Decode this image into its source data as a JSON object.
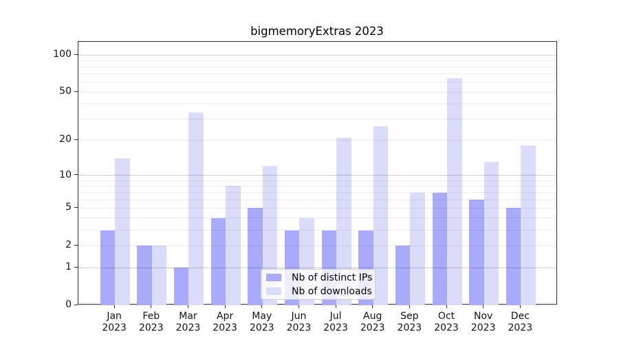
{
  "figure": {
    "background": "#ffffff",
    "spine_color": "#2b2b2b"
  },
  "chart_data": {
    "type": "bar",
    "title": "bigmemoryExtras 2023",
    "x_axis": {
      "categories": [
        "Jan",
        "Feb",
        "Mar",
        "Apr",
        "May",
        "Jun",
        "Jul",
        "Aug",
        "Sep",
        "Oct",
        "Nov",
        "Dec"
      ],
      "year_label": "2023"
    },
    "y_axis": {
      "scale": "log1p",
      "tick_values": [
        0,
        1,
        2,
        5,
        10,
        20,
        50,
        100
      ],
      "major_gridline_values": [
        1,
        10,
        100
      ],
      "minor_gridline_values": [
        2,
        3,
        4,
        5,
        6,
        7,
        8,
        9,
        20,
        30,
        40,
        50,
        60,
        70,
        80,
        90
      ],
      "range_bottom": 0,
      "range_top_approx": 128
    },
    "series": [
      {
        "name": "Nb of distinct IPs",
        "color": "#aaaafa",
        "values": [
          3,
          2,
          1,
          4,
          5,
          3,
          3,
          3,
          2,
          7,
          6,
          5
        ]
      },
      {
        "name": "Nb of downloads",
        "color": "#dbdbfa",
        "values": [
          14,
          2,
          34,
          8,
          12,
          4,
          21,
          26,
          7,
          65,
          13,
          18
        ]
      }
    ],
    "legend": {
      "position": "bottom-center",
      "background": "rgba(255,255,255,0.8)",
      "border_color": "#cccccc"
    },
    "grid": true
  }
}
